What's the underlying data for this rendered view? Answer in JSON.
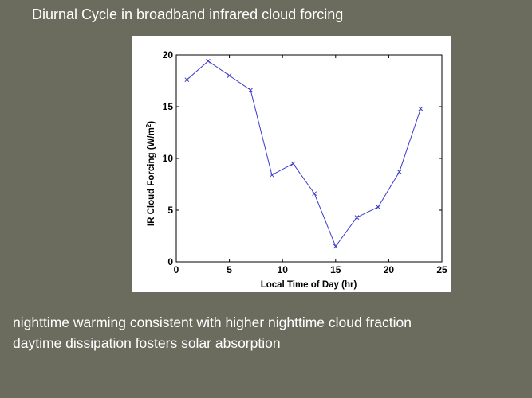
{
  "slide": {
    "title": "Diurnal Cycle in broadband infrared cloud forcing",
    "captions": [
      "nighttime warming consistent with higher nighttime cloud fraction",
      "daytime dissipation fosters solar absorption"
    ]
  },
  "colors": {
    "background": "#6b6b5e",
    "series": "#3b3bcc",
    "text": "#ffffff"
  },
  "chart_data": {
    "type": "line",
    "xlabel": "Local Time of Day (hr)",
    "ylabel_main": "IR Cloud Forcing (W/m",
    "ylabel_sup": "2",
    "ylabel_end": ")",
    "xlim": [
      0,
      25
    ],
    "ylim": [
      0,
      20
    ],
    "xticks": [
      0,
      5,
      10,
      15,
      20,
      25
    ],
    "yticks": [
      0,
      5,
      10,
      15,
      20
    ],
    "marker": "x",
    "grid": false,
    "series": [
      {
        "x": [
          1,
          3,
          5,
          7,
          9,
          11,
          13,
          15,
          17,
          19,
          21,
          23
        ],
        "y": [
          17.6,
          19.4,
          18.0,
          16.6,
          8.4,
          9.5,
          6.6,
          1.5,
          4.3,
          5.3,
          8.7,
          14.8
        ]
      }
    ]
  }
}
